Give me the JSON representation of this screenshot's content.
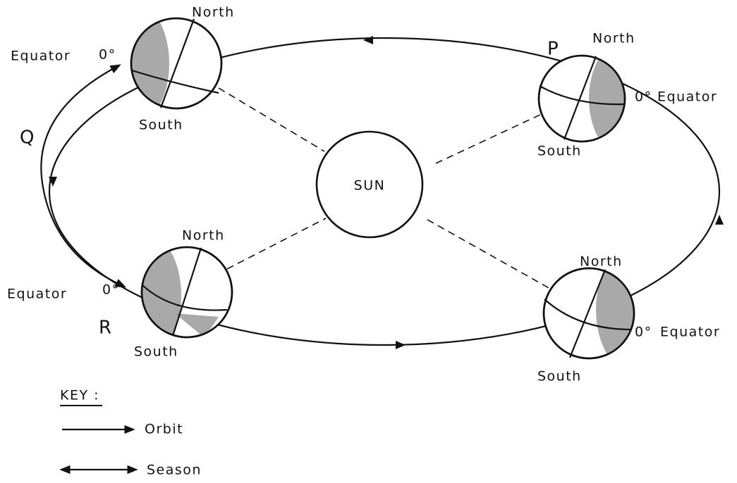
{
  "sun": {
    "label": "SUN"
  },
  "earths": [
    {
      "north": "North",
      "south": "South",
      "equator": "Equator",
      "angle": "0°"
    },
    {
      "north": "North",
      "south": "South",
      "equator": "Equator",
      "angle": "0°"
    },
    {
      "north": "North",
      "south": "South",
      "equator": "Equator",
      "angle": "0°"
    },
    {
      "north": "North",
      "south": "South",
      "equator": "Equator",
      "angle": "0°"
    }
  ],
  "labels": [
    "P",
    "Q",
    "R"
  ],
  "key": {
    "title": "KEY :",
    "items": [
      "Orbit",
      "Season"
    ]
  }
}
